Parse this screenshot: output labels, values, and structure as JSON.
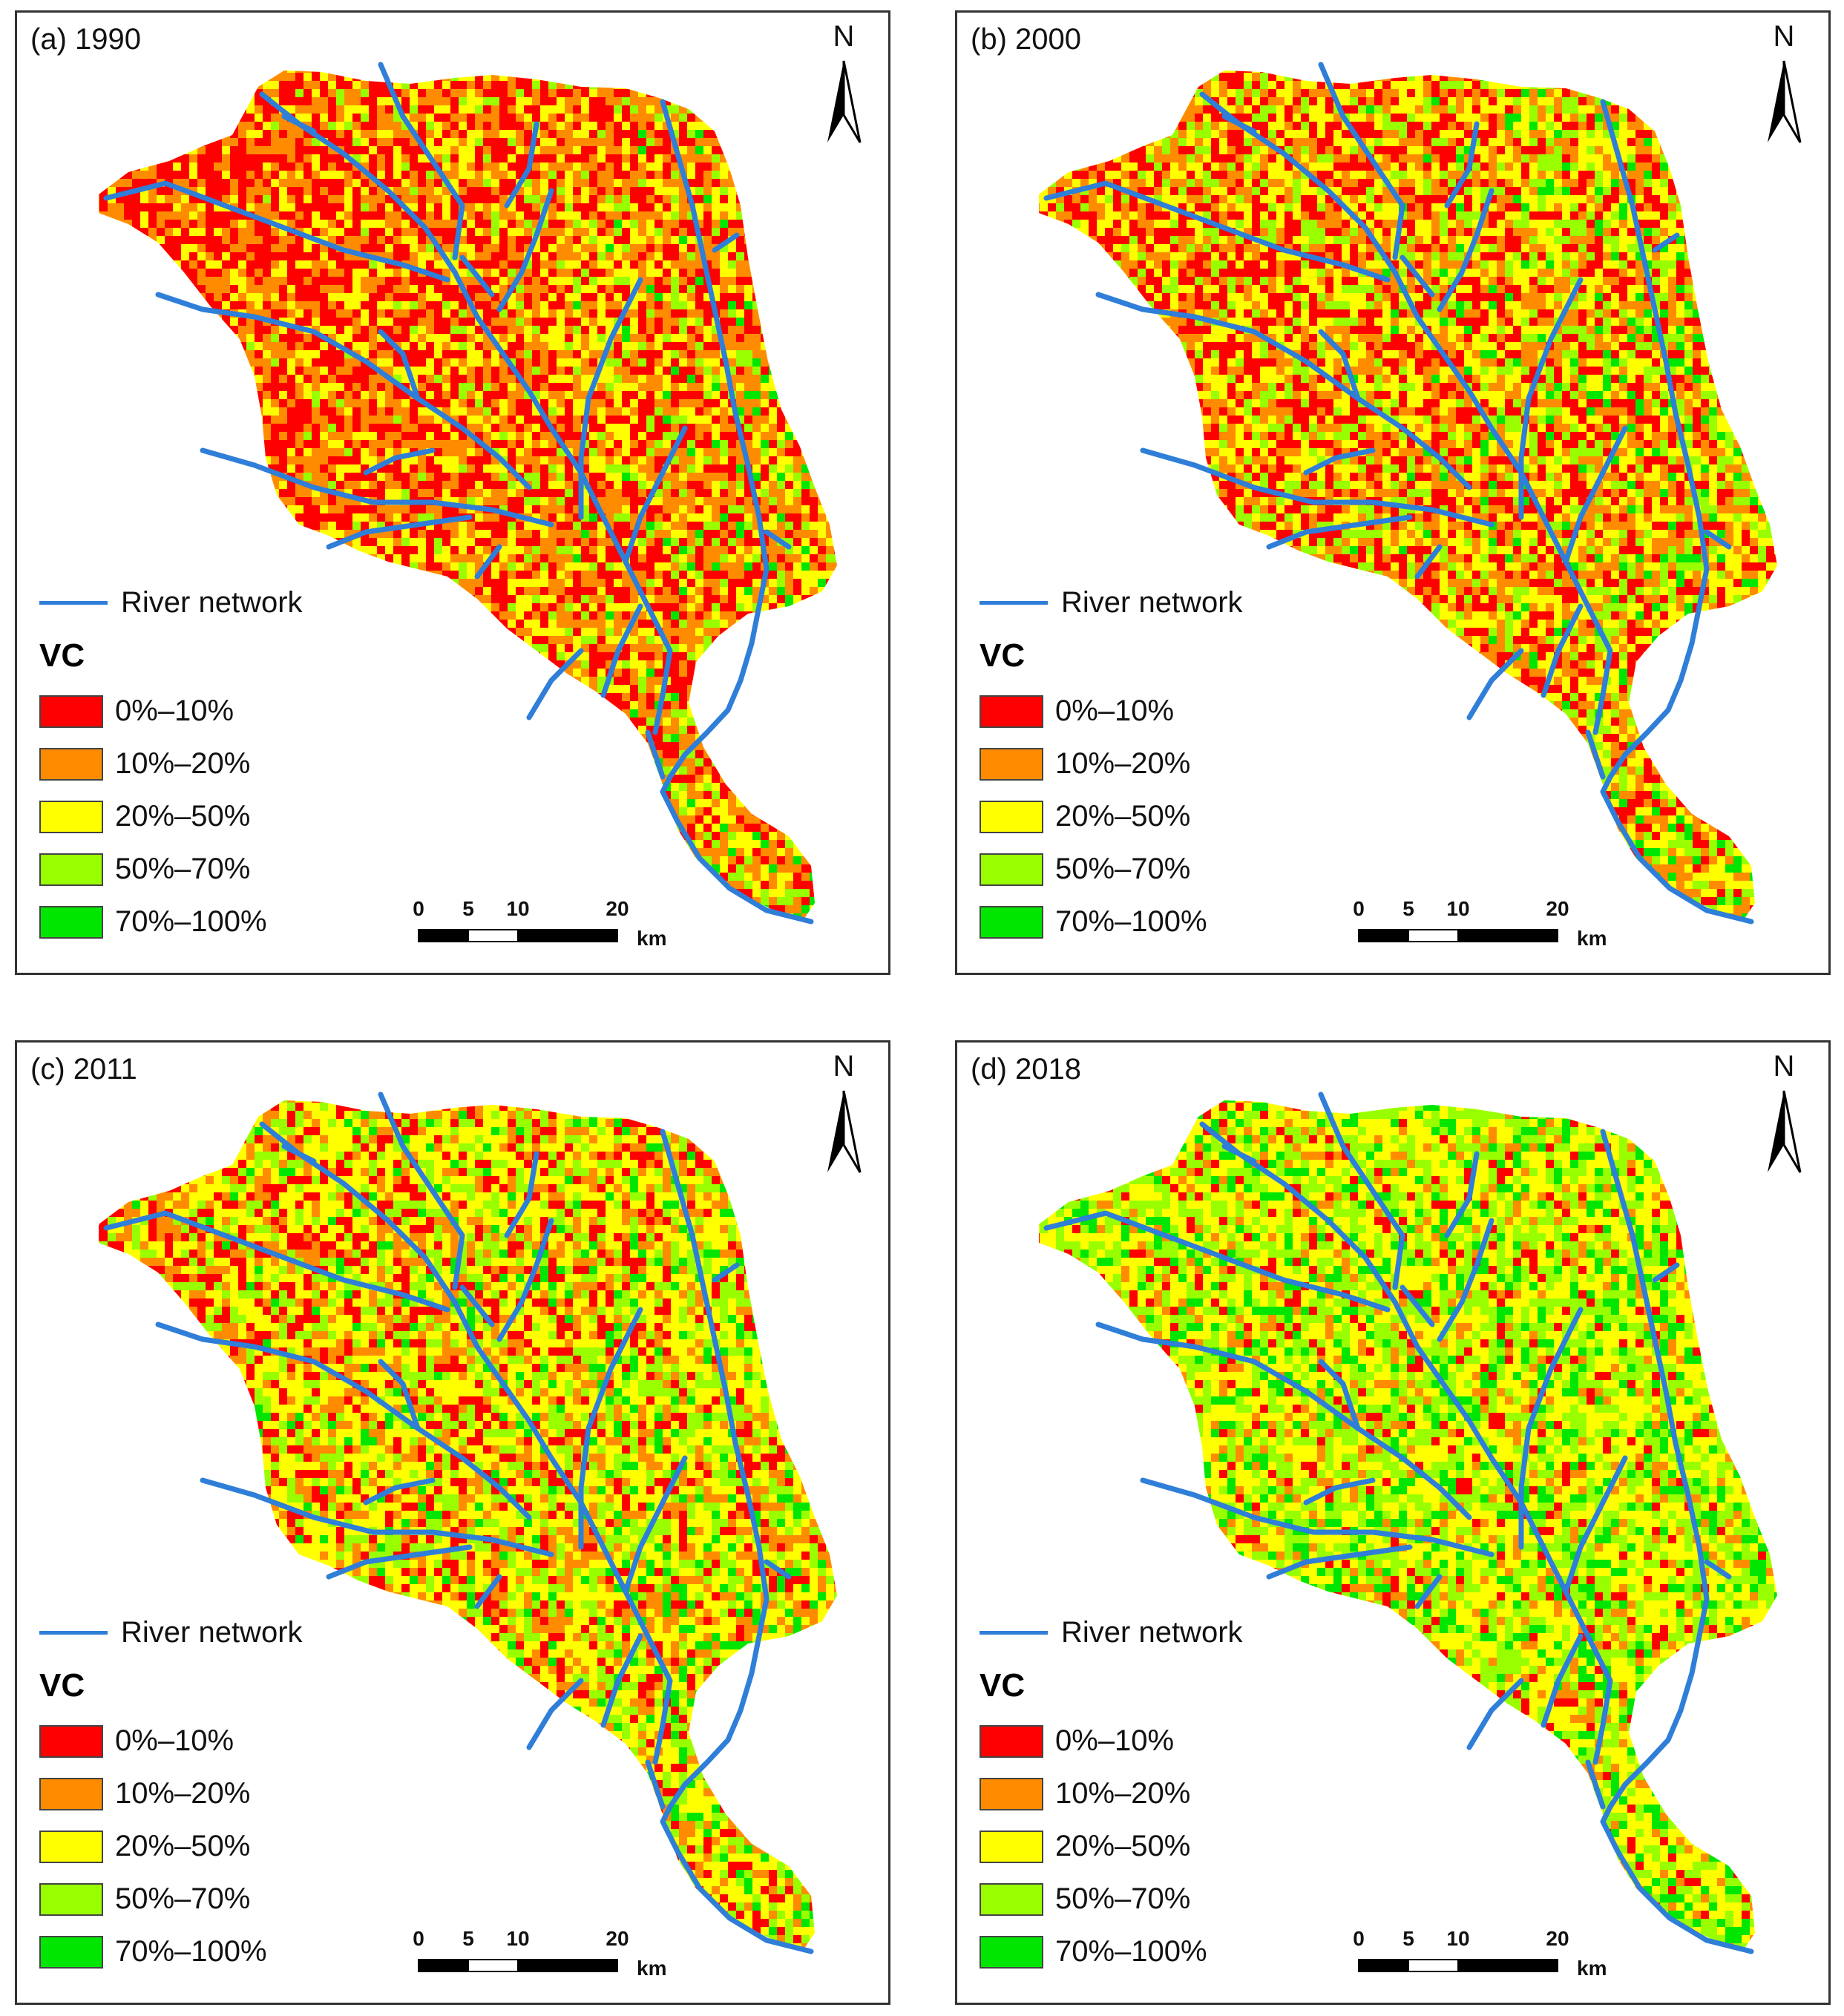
{
  "panels": [
    {
      "title": "(a) 1990"
    },
    {
      "title": "(b) 2000"
    },
    {
      "title": "(c) 2011"
    },
    {
      "title": "(d) 2018"
    }
  ],
  "north_label": "N",
  "legend": {
    "river_label": "River network",
    "vc_title": "VC",
    "classes": [
      {
        "label": "0%–10%",
        "color": "#ff0000"
      },
      {
        "label": "10%–20%",
        "color": "#ff8c00"
      },
      {
        "label": "20%–50%",
        "color": "#ffff00"
      },
      {
        "label": "50%–70%",
        "color": "#99ff00"
      },
      {
        "label": "70%–100%",
        "color": "#00e600"
      }
    ]
  },
  "river_color": "#2f7ed8",
  "scalebar": {
    "ticks": [
      "0",
      "5",
      "10",
      "20"
    ],
    "unit": "km"
  },
  "class_shares": [
    [
      0.3,
      0.32,
      0.22,
      0.11,
      0.05
    ],
    [
      0.22,
      0.25,
      0.28,
      0.17,
      0.08
    ],
    [
      0.15,
      0.2,
      0.35,
      0.2,
      0.1
    ],
    [
      0.07,
      0.1,
      0.38,
      0.3,
      0.15
    ]
  ]
}
